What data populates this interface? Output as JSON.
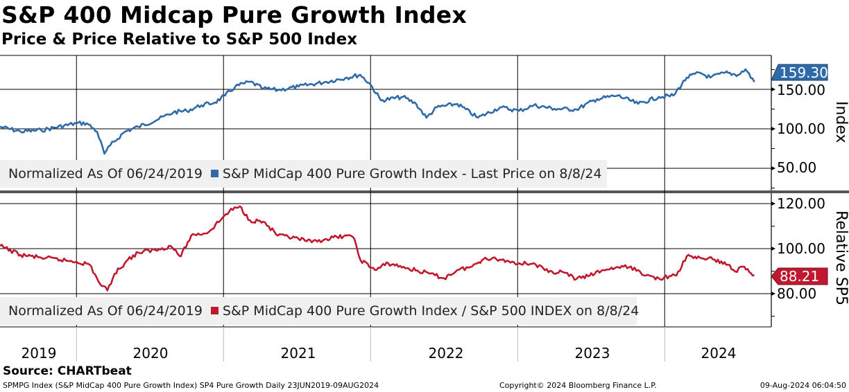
{
  "title": "S&P 400 Midcap Pure Growth Index",
  "subtitle": "Price & Price Relative to S&P 500 Index",
  "source": "Source: CHARTbeat",
  "footer": {
    "left": "SPMPG Index (S&P MidCap 400 Pure Growth Index) SP4 Pure Growth  Daily 23JUN2019-09AUG2024",
    "center": "Copyright© 2024 Bloomberg Finance L.P.",
    "right": "09-Aug-2024 06:04:50"
  },
  "chart_data": [
    {
      "type": "line",
      "panel": "top",
      "ylabel": "Index",
      "yticks": [
        "150.00",
        "100.00",
        "50.00"
      ],
      "ytick_values": [
        150,
        100,
        50
      ],
      "legend": {
        "prefix": "Normalized As Of 06/24/2019",
        "label": "S&P MidCap 400 Pure Growth Index - Last Price on 8/8/24",
        "placement": "bottom-left"
      },
      "last_value": "159.30",
      "color": "#2e6aa8",
      "x": [
        2019.48,
        2019.62,
        2019.76,
        2020.0,
        2020.07,
        2020.14,
        2020.19,
        2020.23,
        2020.33,
        2020.42,
        2020.56,
        2020.66,
        2020.75,
        2020.85,
        2020.94,
        2021.01,
        2021.08,
        2021.18,
        2021.27,
        2021.37,
        2021.51,
        2021.7,
        2021.84,
        2021.93,
        2022.0,
        2022.07,
        2022.22,
        2022.31,
        2022.38,
        2022.45,
        2022.59,
        2022.73,
        2022.88,
        2023.01,
        2023.11,
        2023.25,
        2023.4,
        2023.54,
        2023.68,
        2023.82,
        2023.96,
        2024.06,
        2024.15,
        2024.24,
        2024.31,
        2024.41,
        2024.5,
        2024.55,
        2024.61
      ],
      "values": [
        102.6,
        96.5,
        98.2,
        107,
        107,
        96.5,
        68.4,
        79,
        96.5,
        102.6,
        112.3,
        121,
        122.8,
        129.8,
        133.3,
        142.1,
        153.5,
        159.6,
        150.9,
        149.1,
        153.5,
        159.6,
        164.9,
        168.4,
        156.1,
        136,
        140.4,
        131.6,
        114,
        127.2,
        131.6,
        114,
        127.2,
        122.8,
        129.8,
        125.4,
        124.6,
        137.7,
        142.1,
        131.6,
        140.4,
        142.1,
        164.9,
        171,
        164.9,
        171,
        168.4,
        175.4,
        159.3
      ]
    },
    {
      "type": "line",
      "panel": "bottom",
      "ylabel": "Relative SP5",
      "yticks": [
        "120.00",
        "100.00",
        "80.00"
      ],
      "ytick_values": [
        120,
        100,
        80
      ],
      "legend": {
        "prefix": "Normalized As Of 06/24/2019",
        "label": "S&P MidCap 400 Pure Growth Index / S&P 500 INDEX on 8/8/24",
        "placement": "bottom-left"
      },
      "last_value": "88.21",
      "color": "#c0182e",
      "x": [
        2019.48,
        2019.62,
        2019.76,
        2020.0,
        2020.09,
        2020.16,
        2020.21,
        2020.26,
        2020.35,
        2020.42,
        2020.56,
        2020.64,
        2020.71,
        2020.78,
        2020.9,
        2020.99,
        2021.04,
        2021.11,
        2021.18,
        2021.27,
        2021.37,
        2021.51,
        2021.6,
        2021.7,
        2021.84,
        2021.89,
        2021.93,
        2022.03,
        2022.12,
        2022.26,
        2022.4,
        2022.5,
        2022.59,
        2022.69,
        2022.78,
        2022.88,
        2023.01,
        2023.11,
        2023.21,
        2023.3,
        2023.4,
        2023.49,
        2023.58,
        2023.72,
        2023.82,
        2023.87,
        2023.96,
        2024.08,
        2024.15,
        2024.24,
        2024.34,
        2024.43,
        2024.48,
        2024.53,
        2024.61
      ],
      "values": [
        101.2,
        97.2,
        96,
        94.2,
        92.9,
        84.3,
        81.4,
        88.9,
        95.1,
        98.2,
        99.7,
        101.2,
        96.6,
        105.8,
        107.4,
        113.5,
        116.6,
        118.8,
        112.6,
        112,
        105.8,
        104.3,
        102.8,
        104.3,
        105.8,
        104.3,
        95.1,
        90.5,
        93.5,
        91.1,
        88.9,
        86.8,
        90.5,
        92,
        96,
        95.1,
        93.5,
        93.5,
        89.5,
        89.8,
        86.5,
        88,
        90.5,
        92,
        90.5,
        88,
        86.8,
        88,
        96.6,
        96,
        95.1,
        92.9,
        89.8,
        92,
        88.2
      ]
    }
  ],
  "xaxis": {
    "years": [
      "2019",
      "2020",
      "2021",
      "2022",
      "2023",
      "2024"
    ]
  }
}
